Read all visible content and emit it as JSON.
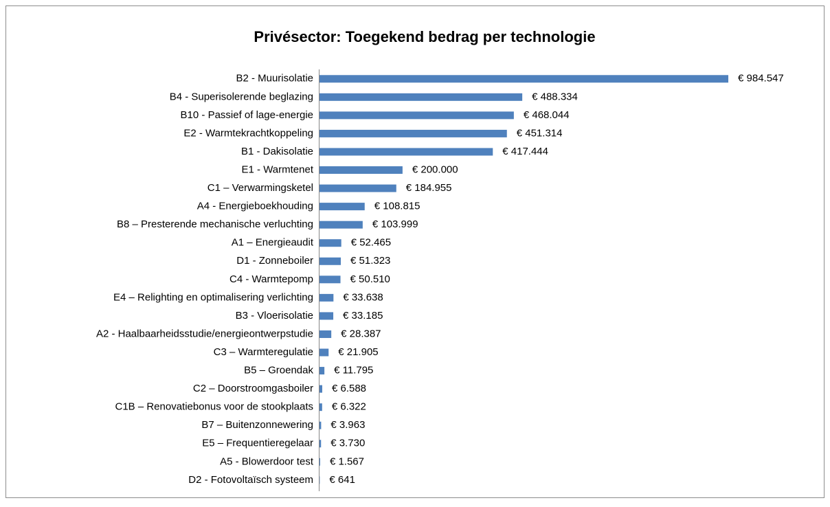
{
  "chart_data": {
    "type": "bar",
    "orientation": "horizontal",
    "title": "Privésector: Toegekend bedrag per technologie",
    "color": "#4f81bd",
    "categories": [
      "B2 - Muurisolatie",
      "B4 - Superisolerende beglazing",
      "B10 - Passief of lage-energie",
      "E2 - Warmtekrachtkoppeling",
      "B1 - Dakisolatie",
      "E1 - Warmtenet",
      "C1 – Verwarmingsketel",
      "A4 - Energieboekhouding",
      "B8 – Presterende mechanische verluchting",
      "A1 – Energieaudit",
      "D1 - Zonneboiler",
      "C4 - Warmtepomp",
      "E4 – Relighting en optimalisering verlichting",
      "B3 - Vloerisolatie",
      "A2 - Haalbaarheidsstudie/energieontwerpstudie",
      "C3 – Warmteregulatie",
      "B5 – Groendak",
      "C2 – Doorstroomgasboiler",
      "C1B – Renovatiebonus voor de stookplaats",
      "B7 – Buitenzonnewering",
      "E5 – Frequentieregelaar",
      "A5 - Blowerdoor test",
      "D2 - Fotovoltaïsch systeem"
    ],
    "values": [
      984547,
      488334,
      468044,
      451314,
      417444,
      200000,
      184955,
      108815,
      103999,
      52465,
      51323,
      50510,
      33638,
      33185,
      28387,
      21905,
      11795,
      6588,
      6322,
      3963,
      3730,
      1567,
      641
    ],
    "value_labels": [
      "€ 984.547",
      "€ 488.334",
      "€ 468.044",
      "€ 451.314",
      "€ 417.444",
      "€ 200.000",
      "€ 184.955",
      "€ 108.815",
      "€ 103.999",
      "€ 52.465",
      "€ 51.323",
      "€ 50.510",
      "€ 33.638",
      "€ 33.185",
      "€ 28.387",
      "€ 21.905",
      "€ 11.795",
      "€ 6.588",
      "€ 6.322",
      "€ 3.963",
      "€ 3.730",
      "€ 1.567",
      "€ 641"
    ]
  }
}
